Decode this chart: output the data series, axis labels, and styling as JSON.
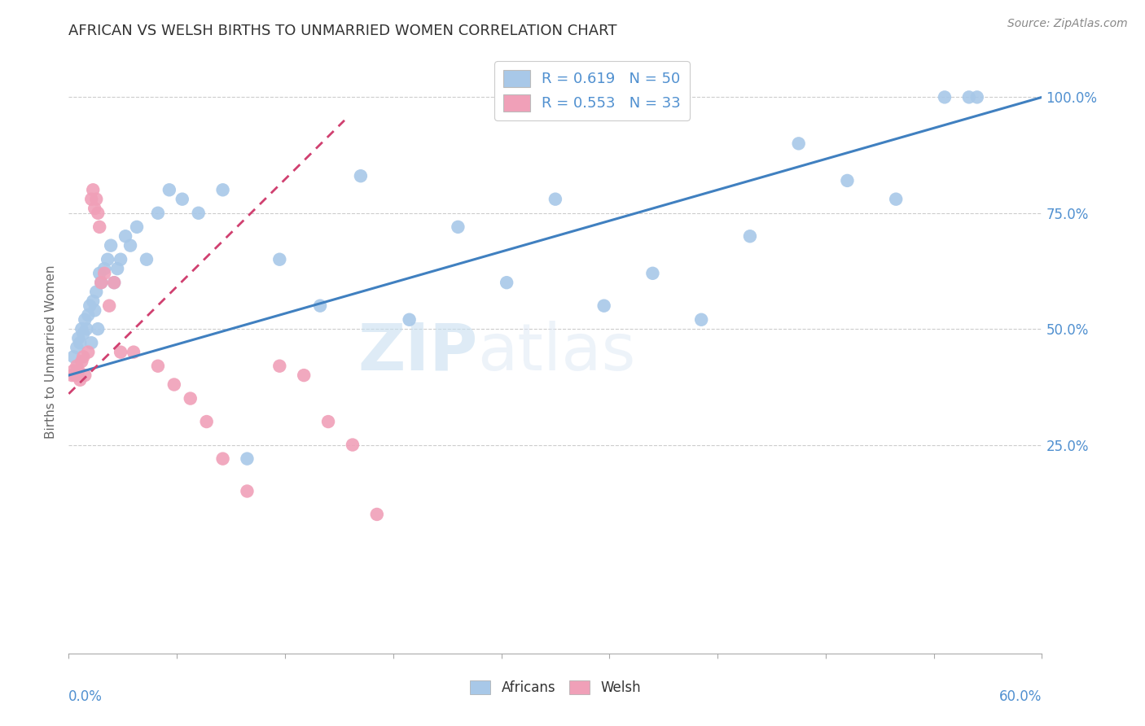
{
  "title": "AFRICAN VS WELSH BIRTHS TO UNMARRIED WOMEN CORRELATION CHART",
  "source": "Source: ZipAtlas.com",
  "ylabel": "Births to Unmarried Women",
  "legend_blue_r": "R = 0.619",
  "legend_blue_n": "N = 50",
  "legend_pink_r": "R = 0.553",
  "legend_pink_n": "N = 33",
  "legend_blue_label": "Africans",
  "legend_pink_label": "Welsh",
  "watermark_zip": "ZIP",
  "watermark_atlas": "atlas",
  "blue_color": "#a8c8e8",
  "pink_color": "#f0a0b8",
  "blue_line_color": "#4080c0",
  "pink_line_color": "#d04070",
  "title_color": "#333333",
  "axis_label_color": "#5090d0",
  "background_color": "#ffffff",
  "xlim": [
    0.0,
    0.6
  ],
  "ylim": [
    -0.2,
    1.1
  ],
  "africans_x": [
    0.003,
    0.005,
    0.006,
    0.007,
    0.008,
    0.009,
    0.01,
    0.011,
    0.012,
    0.013,
    0.014,
    0.015,
    0.016,
    0.017,
    0.018,
    0.019,
    0.02,
    0.022,
    0.024,
    0.026,
    0.028,
    0.03,
    0.032,
    0.035,
    0.038,
    0.042,
    0.048,
    0.055,
    0.062,
    0.07,
    0.08,
    0.095,
    0.11,
    0.13,
    0.155,
    0.18,
    0.21,
    0.24,
    0.27,
    0.3,
    0.33,
    0.36,
    0.39,
    0.42,
    0.45,
    0.48,
    0.51,
    0.54,
    0.555,
    0.56
  ],
  "africans_y": [
    0.44,
    0.46,
    0.48,
    0.47,
    0.5,
    0.49,
    0.52,
    0.5,
    0.53,
    0.55,
    0.47,
    0.56,
    0.54,
    0.58,
    0.5,
    0.62,
    0.6,
    0.63,
    0.65,
    0.68,
    0.6,
    0.63,
    0.65,
    0.7,
    0.68,
    0.72,
    0.65,
    0.75,
    0.8,
    0.78,
    0.75,
    0.8,
    0.22,
    0.65,
    0.55,
    0.83,
    0.52,
    0.72,
    0.6,
    0.78,
    0.55,
    0.62,
    0.52,
    0.7,
    0.9,
    0.82,
    0.78,
    1.0,
    1.0,
    1.0
  ],
  "welsh_x": [
    0.002,
    0.003,
    0.004,
    0.005,
    0.006,
    0.007,
    0.008,
    0.009,
    0.01,
    0.012,
    0.014,
    0.015,
    0.016,
    0.017,
    0.018,
    0.019,
    0.02,
    0.022,
    0.025,
    0.028,
    0.032,
    0.04,
    0.055,
    0.065,
    0.075,
    0.085,
    0.095,
    0.11,
    0.13,
    0.145,
    0.16,
    0.175,
    0.19
  ],
  "welsh_y": [
    0.4,
    0.41,
    0.4,
    0.42,
    0.41,
    0.39,
    0.43,
    0.44,
    0.4,
    0.45,
    0.78,
    0.8,
    0.76,
    0.78,
    0.75,
    0.72,
    0.6,
    0.62,
    0.55,
    0.6,
    0.45,
    0.45,
    0.42,
    0.38,
    0.35,
    0.3,
    0.22,
    0.15,
    0.42,
    0.4,
    0.3,
    0.25,
    0.1
  ],
  "blue_line_x0": 0.0,
  "blue_line_y0": 0.4,
  "blue_line_x1": 0.6,
  "blue_line_y1": 1.0,
  "pink_line_x0": 0.0,
  "pink_line_y0": 0.36,
  "pink_line_x1": 0.17,
  "pink_line_y1": 0.95
}
